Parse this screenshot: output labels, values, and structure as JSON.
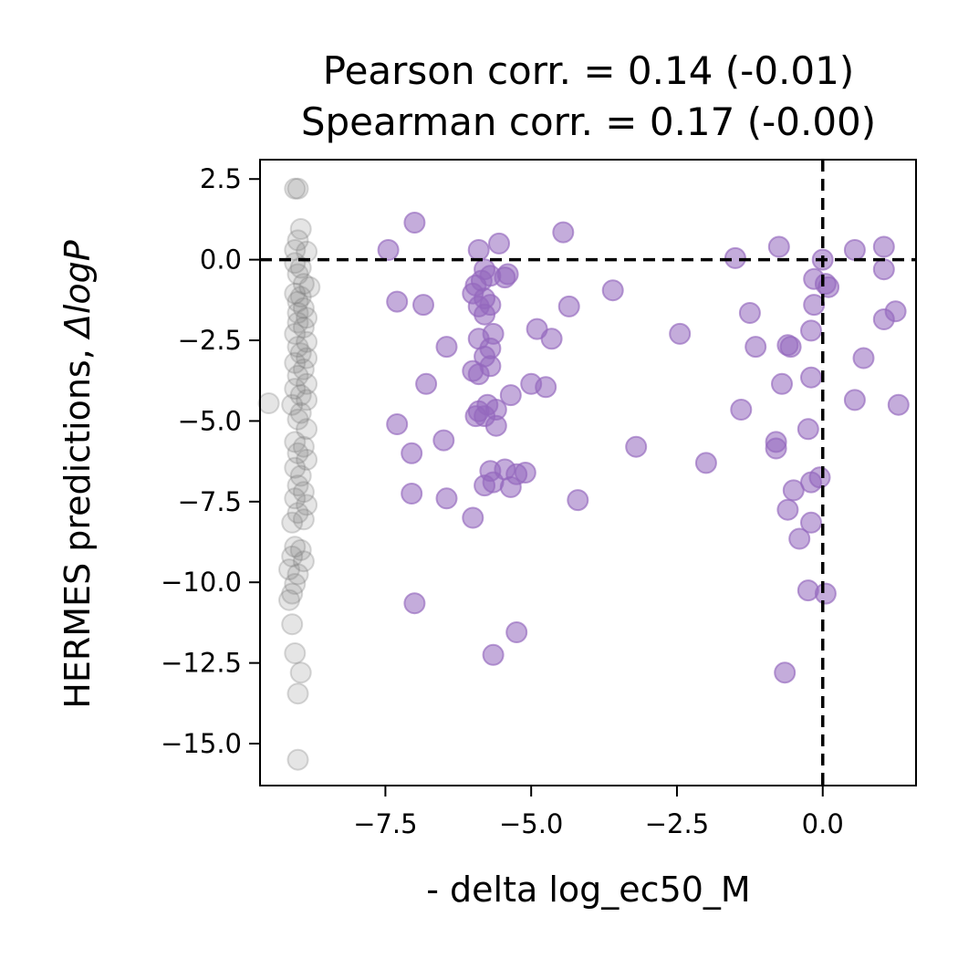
{
  "chart_data": {
    "type": "scatter",
    "title_lines": [
      "Pearson corr. = 0.14 (-0.01)",
      "Spearman corr. = 0.17 (-0.00)"
    ],
    "xlabel": "- delta log_ec50_M",
    "ylabel": "HERMES predictions, ",
    "ylabel_math": "ΔlogP",
    "xlim": [
      -9.65,
      1.6
    ],
    "ylim": [
      -16.3,
      3.1
    ],
    "xticks": [
      -7.5,
      -5.0,
      -2.5,
      0.0
    ],
    "xtick_labels": [
      "−7.5",
      "−5.0",
      "−2.5",
      "0.0"
    ],
    "yticks": [
      2.5,
      0.0,
      -2.5,
      -5.0,
      -7.5,
      -10.0,
      -12.5,
      -15.0
    ],
    "ytick_labels": [
      "2.5",
      "0.0",
      "−2.5",
      "−5.0",
      "−7.5",
      "−10.0",
      "−12.5",
      "−15.0"
    ],
    "reference_lines": {
      "x": 0.0,
      "y": 0.0,
      "style": "dashed",
      "color": "#000000"
    },
    "grid": false,
    "legend": "none",
    "series": [
      {
        "color": "#9467bd",
        "alpha": 0.55,
        "points": [
          [
            -7.0,
            1.15
          ],
          [
            -4.45,
            0.85
          ],
          [
            -7.45,
            0.3
          ],
          [
            -5.9,
            0.3
          ],
          [
            -5.55,
            0.5
          ],
          [
            -5.8,
            -0.3
          ],
          [
            -5.4,
            -0.45
          ],
          [
            -5.85,
            -0.65
          ],
          [
            -5.45,
            -0.55
          ],
          [
            -5.7,
            -0.5
          ],
          [
            -5.95,
            -0.8
          ],
          [
            -6.0,
            -1.05
          ],
          [
            -5.8,
            -1.2
          ],
          [
            -5.9,
            -1.45
          ],
          [
            -5.7,
            -1.4
          ],
          [
            -5.8,
            -1.7
          ],
          [
            -5.65,
            -2.3
          ],
          [
            -5.9,
            -2.45
          ],
          [
            -5.7,
            -2.75
          ],
          [
            -5.8,
            -3.0
          ],
          [
            -5.7,
            -3.3
          ],
          [
            -5.9,
            -3.55
          ],
          [
            -6.0,
            -3.45
          ],
          [
            -5.35,
            -4.2
          ],
          [
            -5.75,
            -4.5
          ],
          [
            -5.9,
            -4.7
          ],
          [
            -5.6,
            -4.65
          ],
          [
            -5.95,
            -4.85
          ],
          [
            -5.8,
            -4.85
          ],
          [
            -5.6,
            -5.15
          ],
          [
            -7.3,
            -1.3
          ],
          [
            -6.85,
            -1.4
          ],
          [
            -6.45,
            -2.7
          ],
          [
            -6.8,
            -3.85
          ],
          [
            -7.3,
            -5.1
          ],
          [
            -7.05,
            -6.0
          ],
          [
            -6.5,
            -5.6
          ],
          [
            -7.05,
            -7.25
          ],
          [
            -6.45,
            -7.4
          ],
          [
            -6.0,
            -8.0
          ],
          [
            -7.0,
            -10.65
          ],
          [
            -4.35,
            -1.45
          ],
          [
            -3.6,
            -0.95
          ],
          [
            -4.9,
            -2.15
          ],
          [
            -4.65,
            -2.45
          ],
          [
            -5.0,
            -3.85
          ],
          [
            -4.75,
            -3.95
          ],
          [
            -5.7,
            -6.55
          ],
          [
            -5.45,
            -6.5
          ],
          [
            -5.25,
            -6.65
          ],
          [
            -5.1,
            -6.6
          ],
          [
            -5.65,
            -6.9
          ],
          [
            -5.8,
            -7.0
          ],
          [
            -5.35,
            -7.05
          ],
          [
            -4.2,
            -7.45
          ],
          [
            -3.2,
            -5.8
          ],
          [
            -5.65,
            -12.25
          ],
          [
            -5.25,
            -11.55
          ],
          [
            -2.45,
            -2.3
          ],
          [
            -2.0,
            -6.3
          ],
          [
            -1.5,
            0.05
          ],
          [
            -0.75,
            0.4
          ],
          [
            0.0,
            0.0
          ],
          [
            0.55,
            0.3
          ],
          [
            1.05,
            0.4
          ],
          [
            1.05,
            -0.3
          ],
          [
            -0.15,
            -0.6
          ],
          [
            0.05,
            -0.75
          ],
          [
            0.1,
            -0.85
          ],
          [
            -0.15,
            -1.4
          ],
          [
            -1.25,
            -1.65
          ],
          [
            -1.15,
            -2.7
          ],
          [
            -0.55,
            -2.7
          ],
          [
            -0.6,
            -2.65
          ],
          [
            -0.2,
            -2.2
          ],
          [
            1.25,
            -1.6
          ],
          [
            1.05,
            -1.85
          ],
          [
            0.7,
            -3.05
          ],
          [
            -0.2,
            -3.65
          ],
          [
            -0.7,
            -3.85
          ],
          [
            0.55,
            -4.35
          ],
          [
            1.3,
            -4.5
          ],
          [
            -1.4,
            -4.65
          ],
          [
            -0.8,
            -5.65
          ],
          [
            -0.8,
            -5.85
          ],
          [
            -0.25,
            -5.25
          ],
          [
            -0.5,
            -7.15
          ],
          [
            -0.2,
            -6.9
          ],
          [
            -0.05,
            -6.75
          ],
          [
            -0.6,
            -7.75
          ],
          [
            -0.2,
            -8.15
          ],
          [
            -0.4,
            -8.65
          ],
          [
            -0.25,
            -10.25
          ],
          [
            0.05,
            -10.35
          ],
          [
            -0.65,
            -12.8
          ]
        ]
      },
      {
        "color": "#7f7f7f",
        "alpha": 0.2,
        "points": [
          [
            -9.0,
            2.2
          ],
          [
            -9.05,
            2.2
          ],
          [
            -8.95,
            0.95
          ],
          [
            -9.0,
            0.6
          ],
          [
            -9.05,
            0.3
          ],
          [
            -8.85,
            0.25
          ],
          [
            -9.05,
            -0.1
          ],
          [
            -8.95,
            -0.25
          ],
          [
            -9.0,
            -0.45
          ],
          [
            -8.9,
            -0.75
          ],
          [
            -8.8,
            -0.85
          ],
          [
            -9.05,
            -1.05
          ],
          [
            -8.95,
            -1.15
          ],
          [
            -9.0,
            -1.3
          ],
          [
            -8.9,
            -1.5
          ],
          [
            -9.0,
            -1.65
          ],
          [
            -8.85,
            -1.8
          ],
          [
            -9.0,
            -1.95
          ],
          [
            -8.9,
            -2.1
          ],
          [
            -9.05,
            -2.3
          ],
          [
            -8.85,
            -2.55
          ],
          [
            -9.0,
            -2.7
          ],
          [
            -8.95,
            -2.9
          ],
          [
            -8.85,
            -3.05
          ],
          [
            -9.05,
            -3.2
          ],
          [
            -8.9,
            -3.4
          ],
          [
            -9.0,
            -3.6
          ],
          [
            -8.85,
            -3.85
          ],
          [
            -9.05,
            -4.0
          ],
          [
            -8.95,
            -4.2
          ],
          [
            -8.85,
            -4.35
          ],
          [
            -9.5,
            -4.45
          ],
          [
            -9.1,
            -4.5
          ],
          [
            -8.95,
            -4.75
          ],
          [
            -9.0,
            -4.95
          ],
          [
            -8.85,
            -5.25
          ],
          [
            -9.05,
            -5.65
          ],
          [
            -8.9,
            -5.8
          ],
          [
            -9.0,
            -6.0
          ],
          [
            -8.85,
            -6.2
          ],
          [
            -9.05,
            -6.45
          ],
          [
            -8.95,
            -6.7
          ],
          [
            -9.0,
            -7.0
          ],
          [
            -8.9,
            -7.2
          ],
          [
            -9.05,
            -7.4
          ],
          [
            -8.85,
            -7.6
          ],
          [
            -9.0,
            -7.85
          ],
          [
            -9.1,
            -8.15
          ],
          [
            -8.9,
            -8.05
          ],
          [
            -9.05,
            -8.9
          ],
          [
            -8.95,
            -9.0
          ],
          [
            -9.1,
            -9.2
          ],
          [
            -8.9,
            -9.35
          ],
          [
            -9.15,
            -9.6
          ],
          [
            -9.0,
            -9.75
          ],
          [
            -9.05,
            -10.05
          ],
          [
            -9.1,
            -10.35
          ],
          [
            -9.15,
            -10.55
          ],
          [
            -9.1,
            -11.3
          ],
          [
            -9.05,
            -12.2
          ],
          [
            -8.95,
            -12.8
          ],
          [
            -9.0,
            -13.45
          ],
          [
            -9.0,
            -15.5
          ]
        ]
      }
    ]
  }
}
